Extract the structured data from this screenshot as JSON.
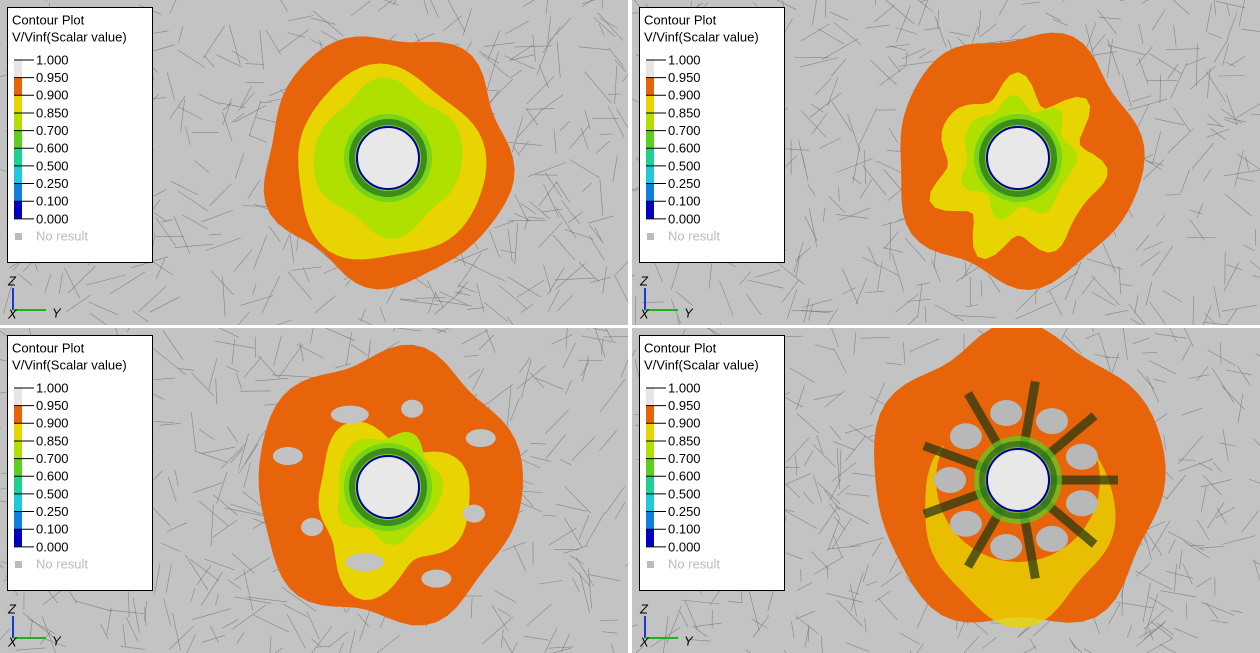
{
  "panels": [
    {
      "legend": {
        "title": "Contour Plot",
        "subtitle": "V/Vinf(Scalar value)",
        "levels": [
          "1.000",
          "0.950",
          "0.900",
          "0.850",
          "0.700",
          "0.600",
          "0.500",
          "0.250",
          "0.100",
          "0.000"
        ],
        "bands": [
          "#e6e6e6",
          "#e8640a",
          "#e8d400",
          "#b0e000",
          "#5cd020",
          "#20d090",
          "#20c8d8",
          "#1080e0",
          "#0000c0"
        ],
        "no_result": "No result"
      },
      "axes": {
        "z": "Z",
        "x": "X",
        "y": "Y"
      }
    },
    {
      "legend": {
        "title": "Contour Plot",
        "subtitle": "V/Vinf(Scalar value)",
        "levels": [
          "1.000",
          "0.950",
          "0.900",
          "0.850",
          "0.700",
          "0.600",
          "0.500",
          "0.250",
          "0.100",
          "0.000"
        ],
        "bands": [
          "#e6e6e6",
          "#e8640a",
          "#e8d400",
          "#b0e000",
          "#5cd020",
          "#20d090",
          "#20c8d8",
          "#1080e0",
          "#0000c0"
        ],
        "no_result": "No result"
      },
      "axes": {
        "z": "Z",
        "x": "X",
        "y": "Y"
      }
    },
    {
      "legend": {
        "title": "Contour Plot",
        "subtitle": "V/Vinf(Scalar value)",
        "levels": [
          "1.000",
          "0.950",
          "0.900",
          "0.850",
          "0.700",
          "0.600",
          "0.500",
          "0.250",
          "0.100",
          "0.000"
        ],
        "bands": [
          "#e6e6e6",
          "#e8640a",
          "#e8d400",
          "#b0e000",
          "#5cd020",
          "#20d090",
          "#20c8d8",
          "#1080e0",
          "#0000c0"
        ],
        "no_result": "No result"
      },
      "axes": {
        "z": "Z",
        "x": "X",
        "y": "Y"
      }
    },
    {
      "legend": {
        "title": "Contour Plot",
        "subtitle": "V/Vinf(Scalar value)",
        "levels": [
          "1.000",
          "0.950",
          "0.900",
          "0.850",
          "0.700",
          "0.600",
          "0.500",
          "0.250",
          "0.100",
          "0.000"
        ],
        "bands": [
          "#e6e6e6",
          "#e8640a",
          "#e8d400",
          "#b0e000",
          "#5cd020",
          "#20d090",
          "#20c8d8",
          "#1080e0",
          "#0000c0"
        ],
        "no_result": "No result"
      },
      "axes": {
        "z": "Z",
        "x": "X",
        "y": "Y"
      }
    }
  ]
}
